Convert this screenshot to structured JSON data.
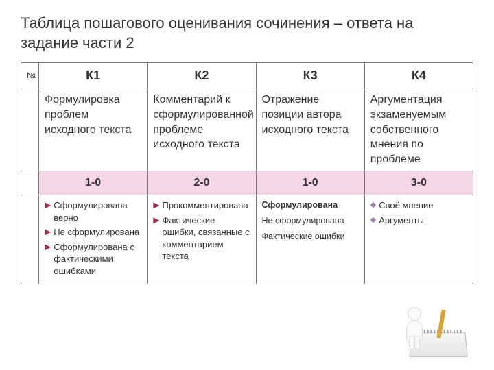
{
  "title": "Таблица пошагового оценивания сочинения – ответа на задание части 2",
  "table": {
    "num_header": "№",
    "headers": [
      "К1",
      "К2",
      "К3",
      "К4"
    ],
    "descriptions": [
      "Формулировка проблем исходного текста",
      "Комментарий к сформулированной проблеме исходного текста",
      "Отражение позиции автора исходного текста",
      "Аргументация экзаменуемым собственного мнения по проблеме"
    ],
    "scores": [
      "1-0",
      "2-0",
      "1-0",
      "3-0"
    ],
    "details": {
      "k1": [
        "Сформулирована верно",
        "Не сформулирована",
        "Сформулирована с фактическими ошибками"
      ],
      "k2": [
        "Прокомментирована",
        "Фактические ошибки, связанные с комментарием текста"
      ],
      "k3": [
        "Сформулирована",
        "Не сформулирована",
        "Фактические ошибки"
      ],
      "k4": [
        "Своё мнение",
        "Аргументы"
      ]
    },
    "colors": {
      "score_row_bg": "#f5d6e6",
      "border": "#777777",
      "arrow_bullet": "#9b2e4a",
      "diamond_bullet": "#9b7fa8",
      "text": "#333333",
      "background": "#ffffff"
    },
    "fonts": {
      "title_size_pt": 17,
      "header_size_pt": 14,
      "body_size_pt": 12,
      "bullet_size_pt": 10
    }
  }
}
